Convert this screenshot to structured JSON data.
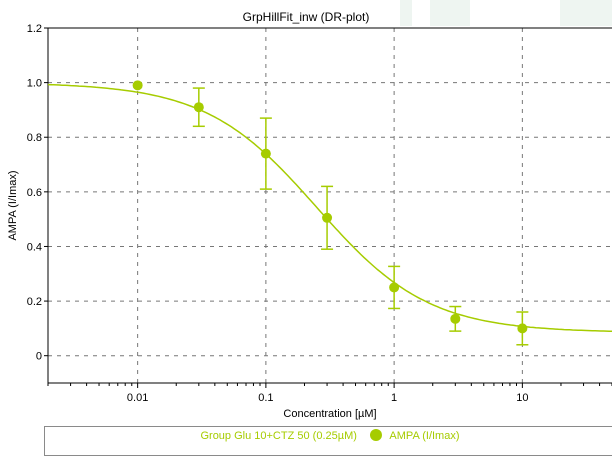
{
  "chart_data": {
    "type": "scatter",
    "title": "GrpHillFit_inw (DR-plot)",
    "xlabel": "Concentration [µM]",
    "ylabel": "AMPA (I/Imax)",
    "xscale": "log",
    "xlim": [
      0.002,
      50
    ],
    "ylim": [
      -0.1,
      1.2
    ],
    "xticks": [
      0.01,
      0.1,
      1,
      10
    ],
    "xtick_labels": [
      "0.01",
      "0.1",
      "1",
      "10"
    ],
    "yticks": [
      0,
      0.2,
      0.4,
      0.6,
      0.8,
      1.0,
      1.2
    ],
    "ytick_labels": [
      "0",
      "0.2",
      "0.4",
      "0.6",
      "0.8",
      "1.0",
      "1.2"
    ],
    "grid": true,
    "legend_position": "bottom",
    "color": "#a6cc00",
    "series": [
      {
        "name": "AMPA (I/Imax)",
        "x": [
          0.01,
          0.03,
          0.1,
          0.3,
          1,
          3,
          10
        ],
        "y": [
          0.99,
          0.91,
          0.74,
          0.505,
          0.25,
          0.135,
          0.1
        ],
        "err": [
          0.0,
          0.07,
          0.13,
          0.115,
          0.077,
          0.045,
          0.06
        ]
      }
    ],
    "fit": {
      "top": 1.0,
      "bottom": 0.085,
      "ec50": 0.25,
      "hill": 1.0
    },
    "legend_group": "Group Glu 10+CTZ 50 (0.25µM)"
  }
}
